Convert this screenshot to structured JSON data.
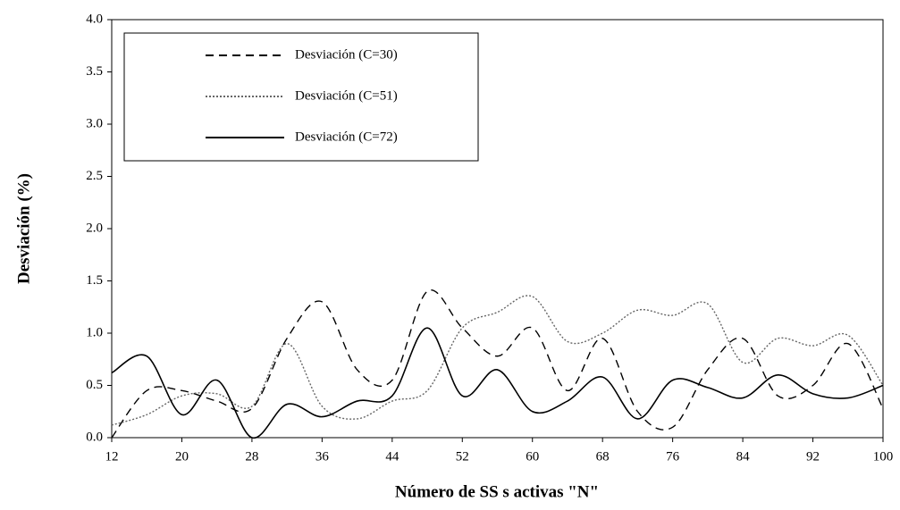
{
  "chart_data": {
    "type": "line",
    "xlabel": "Número de SS s activas \"N\"",
    "ylabel": "Desviación (%)",
    "x": [
      12,
      16,
      20,
      24,
      28,
      32,
      36,
      40,
      44,
      48,
      52,
      56,
      60,
      64,
      68,
      72,
      76,
      80,
      84,
      88,
      92,
      96,
      100
    ],
    "series": [
      {
        "name": "Desviación  (C=30)",
        "color": "#000000",
        "dash": "dashed",
        "values": [
          0.0,
          0.45,
          0.45,
          0.35,
          0.28,
          0.95,
          1.3,
          0.65,
          0.55,
          1.4,
          1.05,
          0.78,
          1.05,
          0.45,
          0.95,
          0.25,
          0.1,
          0.65,
          0.95,
          0.4,
          0.5,
          0.9,
          0.28
        ]
      },
      {
        "name": "Desviación (C=51)",
        "color": "#666666",
        "dash": "dotted",
        "values": [
          0.12,
          0.22,
          0.4,
          0.42,
          0.3,
          0.9,
          0.3,
          0.18,
          0.35,
          0.45,
          1.05,
          1.2,
          1.35,
          0.92,
          1.0,
          1.22,
          1.17,
          1.28,
          0.72,
          0.95,
          0.88,
          0.98,
          0.5
        ]
      },
      {
        "name": "Desviación (C=72)",
        "color": "#000000",
        "dash": "solid",
        "values": [
          0.62,
          0.78,
          0.22,
          0.55,
          0.0,
          0.32,
          0.2,
          0.35,
          0.4,
          1.05,
          0.4,
          0.65,
          0.25,
          0.35,
          0.58,
          0.18,
          0.55,
          0.48,
          0.38,
          0.6,
          0.42,
          0.38,
          0.5
        ]
      }
    ],
    "xlim": [
      12,
      100
    ],
    "xticks": [
      12,
      20,
      28,
      36,
      44,
      52,
      60,
      68,
      76,
      84,
      92,
      100
    ],
    "ylim": [
      0,
      4
    ],
    "yticks": [
      {
        "value": 0,
        "label": "0.0"
      },
      0.5,
      {
        "value": 1,
        "label": "1.0"
      },
      1.5,
      {
        "value": 2,
        "label": "2.0"
      },
      2.5,
      {
        "value": 3,
        "label": "3.0"
      },
      3.5,
      {
        "value": 4,
        "label": "4.0"
      }
    ],
    "legend": "upper left",
    "grid": false
  }
}
